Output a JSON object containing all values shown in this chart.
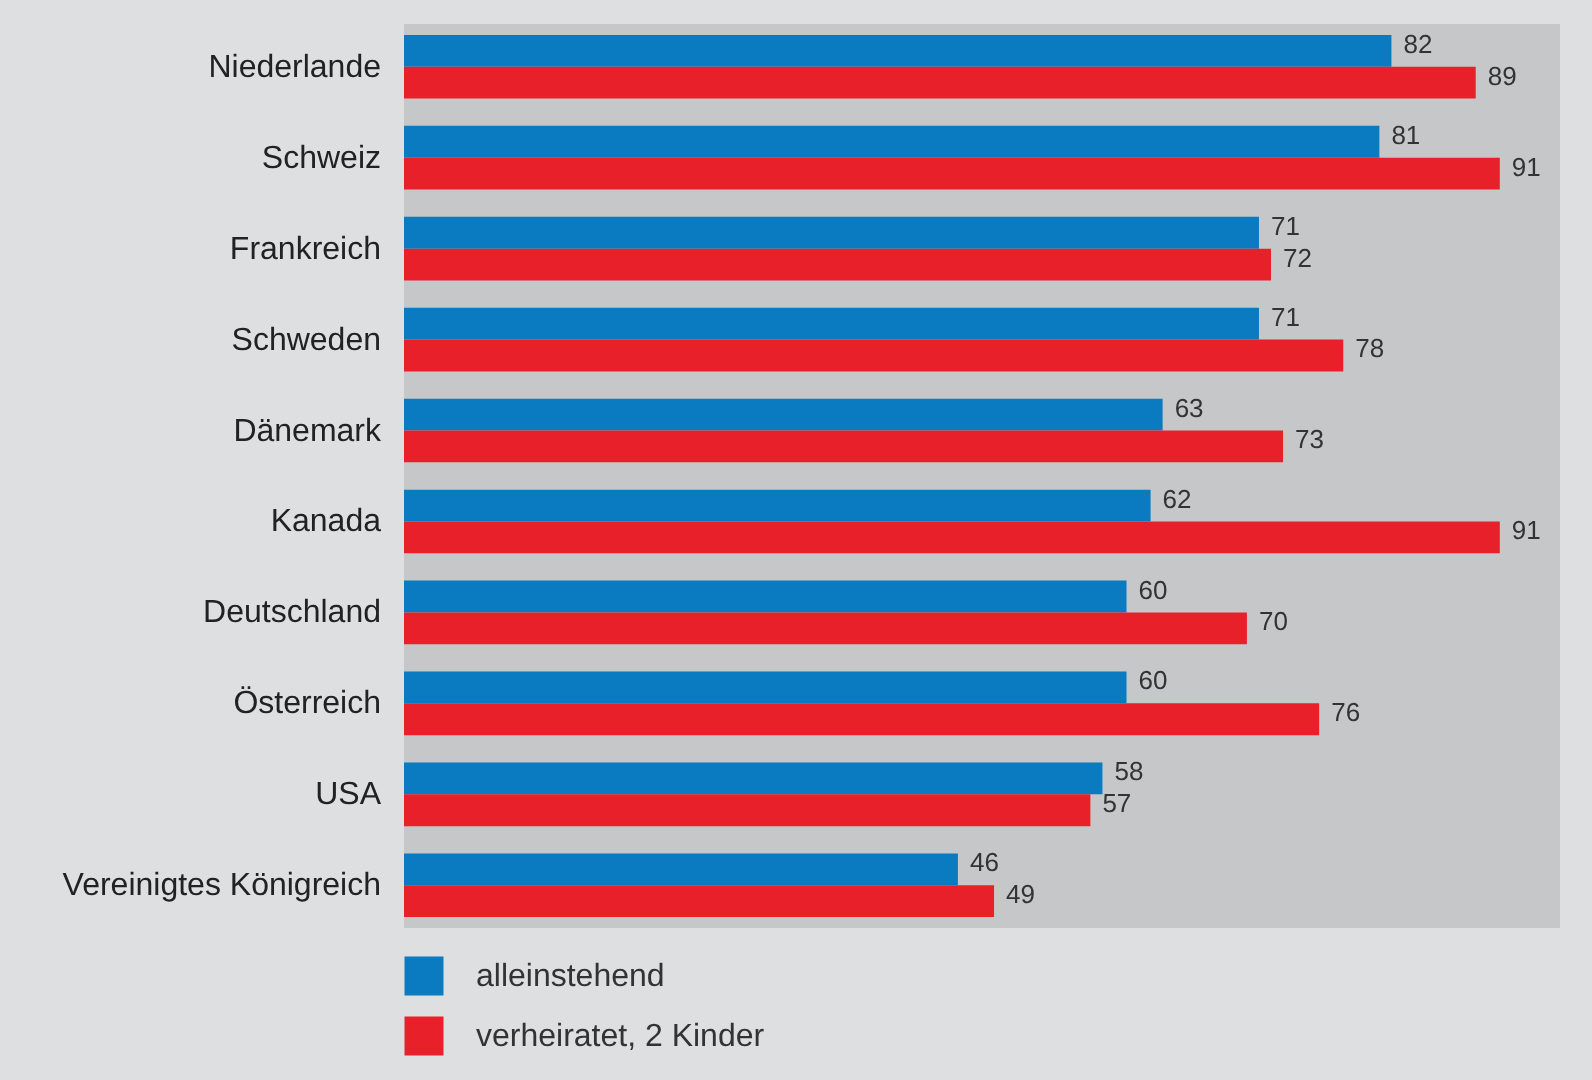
{
  "chart_data": {
    "type": "bar",
    "orientation": "horizontal",
    "categories": [
      "Niederlande",
      "Schweiz",
      "Frankreich",
      "Schweden",
      "Dänemark",
      "Kanada",
      "Deutschland",
      "Österreich",
      "USA",
      "Vereinigtes Königreich"
    ],
    "series": [
      {
        "name": "alleinstehend",
        "color": "#0a7bc1",
        "values": [
          82,
          81,
          71,
          71,
          63,
          62,
          60,
          60,
          58,
          46
        ]
      },
      {
        "name": "verheiratet, 2 Kinder",
        "color": "#e8202a",
        "values": [
          89,
          91,
          72,
          78,
          73,
          91,
          70,
          76,
          57,
          49
        ]
      }
    ],
    "xlim": [
      0,
      96
    ],
    "data_labels": true,
    "legend": "bottom"
  }
}
